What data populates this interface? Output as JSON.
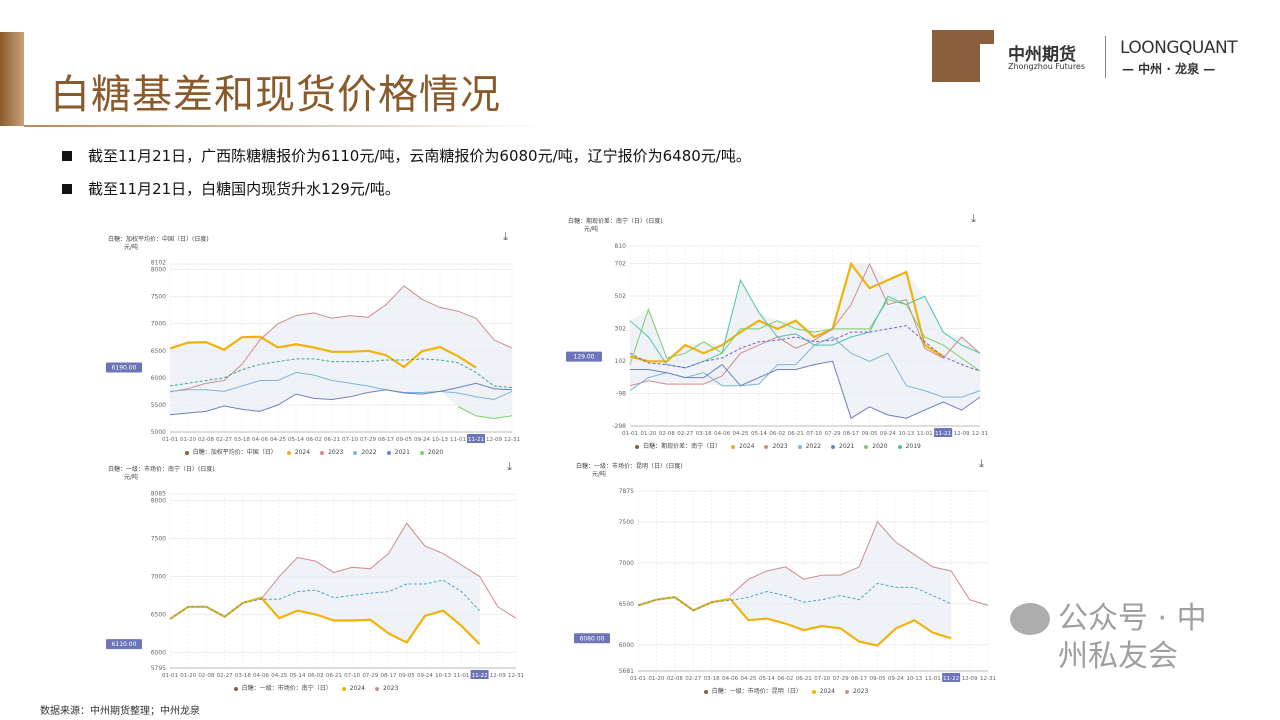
{
  "header": {
    "title": "白糖基差和现货价格情况",
    "brand_cn": "中州期货",
    "brand_en": "Zhongzhou Futures",
    "lq_prefix": "LOONGQ",
    "lq_suffix": "UANT",
    "lq_sub": "— 中州 · 龙泉 —"
  },
  "bullets": [
    "截至11月21日，广西陈糖糖报价为6110元/吨，云南糖报价为6080元/吨，辽宁报价为6480元/吨。",
    "截至11月21日，白糖国内现货升水129元/吨。"
  ],
  "source": "数据来源：中州期货整理；中州龙泉",
  "watermark": "公众号 · 中州私友会",
  "chart_data": [
    {
      "type": "line",
      "title": "白糖：加权平均价：中国（日）(日度)",
      "unit": "元/吨",
      "download_icon": "download-icon",
      "ylim": [
        5000,
        8102
      ],
      "yticks": [
        5000,
        5500,
        6000,
        6500,
        7000,
        7500,
        8000,
        8102
      ],
      "current_label": "6190.00",
      "current_value": 6190,
      "highlight_x": "11-21",
      "categories": [
        "01-01",
        "01-20",
        "02-08",
        "02-27",
        "03-18",
        "04-06",
        "04-25",
        "05-14",
        "06-02",
        "06-21",
        "07-10",
        "07-29",
        "08-17",
        "09-05",
        "09-24",
        "10-13",
        "11-01",
        "11-21",
        "12-09",
        "12-31"
      ],
      "legend_label": "白糖：加权平均价：中国（日）",
      "series": [
        {
          "name": "2024",
          "color": "#f2b20a",
          "width": 2.2,
          "values": [
            6540,
            6650,
            6660,
            6520,
            6750,
            6760,
            6560,
            6620,
            6560,
            6480,
            6480,
            6500,
            6420,
            6200,
            6490,
            6570,
            6400,
            6190,
            null,
            null
          ]
        },
        {
          "name": "2023",
          "color": "#d48a8a",
          "values": [
            5740,
            5800,
            5900,
            5950,
            6250,
            6700,
            7000,
            7150,
            7200,
            7100,
            7150,
            7120,
            7350,
            7700,
            7450,
            7300,
            7230,
            7100,
            6700,
            6550
          ]
        },
        {
          "name": "2022",
          "color": "#7cb8d6",
          "values": [
            5750,
            5780,
            5780,
            5750,
            5850,
            5950,
            5950,
            6100,
            6050,
            5950,
            5900,
            5850,
            5780,
            5730,
            5730,
            5750,
            5720,
            5650,
            5600,
            5750
          ]
        },
        {
          "name": "2021",
          "color": "#6f7fc8",
          "values": [
            5320,
            5350,
            5380,
            5480,
            5420,
            5380,
            5500,
            5700,
            5620,
            5600,
            5650,
            5730,
            5780,
            5720,
            5700,
            5750,
            5820,
            5900,
            5800,
            5780
          ]
        },
        {
          "name": "2020",
          "color": "#7ccf6a",
          "values": [
            null,
            null,
            null,
            null,
            null,
            null,
            null,
            null,
            null,
            null,
            null,
            null,
            null,
            null,
            null,
            null,
            5470,
            5300,
            5250,
            5300
          ]
        },
        {
          "name": "均值",
          "color": "#3aaa8a",
          "dashed": true,
          "legend": false,
          "values": [
            5850,
            5900,
            5950,
            6000,
            6150,
            6250,
            6300,
            6350,
            6350,
            6300,
            6300,
            6300,
            6330,
            6330,
            6350,
            6330,
            6280,
            6100,
            5850,
            5820
          ]
        }
      ]
    },
    {
      "type": "line",
      "title": "白糖：期现价差：南宁（日）(日度)",
      "unit": "元/吨",
      "download_icon": "download-icon",
      "ylim": [
        -298,
        810
      ],
      "yticks": [
        -298,
        -98,
        102,
        302,
        502,
        702,
        810
      ],
      "current_label": "129.00",
      "current_value": 129,
      "highlight_x": "11-21",
      "categories": [
        "01-01",
        "01-20",
        "02-08",
        "02-27",
        "03-18",
        "04-06",
        "04-25",
        "05-14",
        "06-02",
        "06-21",
        "07-10",
        "07-29",
        "08-17",
        "09-05",
        "09-24",
        "10-13",
        "11-01",
        "11-21",
        "12-09",
        "12-31"
      ],
      "legend_label": "白糖：期现价差：南宁（日）",
      "series": [
        {
          "name": "2024",
          "color": "#f2b20a",
          "width": 2.2,
          "values": [
            130,
            100,
            100,
            200,
            150,
            200,
            280,
            350,
            300,
            350,
            250,
            300,
            700,
            550,
            600,
            650,
            200,
            129,
            null,
            null
          ]
        },
        {
          "name": "2023",
          "color": "#d48a8a",
          "values": [
            -50,
            -20,
            -40,
            -40,
            -40,
            10,
            150,
            200,
            250,
            180,
            230,
            300,
            450,
            700,
            450,
            480,
            180,
            120,
            250,
            150
          ]
        },
        {
          "name": "2022",
          "color": "#7cb8d6",
          "values": [
            -80,
            0,
            30,
            0,
            30,
            -50,
            -50,
            -40,
            80,
            80,
            200,
            250,
            150,
            100,
            150,
            -50,
            -80,
            -120,
            -120,
            -80
          ]
        },
        {
          "name": "2021",
          "color": "#6f7fc8",
          "values": [
            50,
            50,
            30,
            0,
            0,
            80,
            -50,
            0,
            50,
            50,
            80,
            100,
            -250,
            -180,
            -230,
            -250,
            -200,
            -150,
            -200,
            -120
          ]
        },
        {
          "name": "2020",
          "color": "#7ccf6a",
          "values": [
            80,
            420,
            120,
            150,
            220,
            150,
            300,
            300,
            350,
            300,
            280,
            300,
            300,
            300,
            480,
            450,
            250,
            200,
            120,
            40
          ]
        },
        {
          "name": "2019",
          "color": "#4fc4a6",
          "values": [
            350,
            250,
            80,
            60,
            100,
            150,
            600,
            400,
            250,
            270,
            200,
            200,
            250,
            280,
            500,
            450,
            500,
            280,
            200,
            150
          ]
        },
        {
          "name": "均值",
          "color": "#7a5fd0",
          "dashed": true,
          "legend": false,
          "values": [
            150,
            90,
            80,
            60,
            100,
            120,
            180,
            220,
            230,
            250,
            220,
            230,
            280,
            280,
            300,
            320,
            220,
            130,
            80,
            40
          ]
        }
      ]
    },
    {
      "type": "line",
      "title": "白糖：一级：市场价：南宁（日）(日度)",
      "unit": "元/吨",
      "download_icon": "download-icon",
      "ylim": [
        5795,
        8085
      ],
      "yticks": [
        5795,
        6000,
        6500,
        7000,
        7500,
        8000,
        8085
      ],
      "current_label": "6110.00",
      "current_value": 6110,
      "highlight_x": "11-22",
      "categories": [
        "01-01",
        "01-20",
        "02-08",
        "02-27",
        "03-18",
        "04-06",
        "04-25",
        "05-14",
        "06-02",
        "06-21",
        "07-10",
        "07-29",
        "08-17",
        "09-05",
        "09-24",
        "10-13",
        "11-01",
        "11-22",
        "12-09",
        "12-31"
      ],
      "legend_label": "白糖：一级：市场价：南宁（日）",
      "series": [
        {
          "name": "2024",
          "color": "#f2b20a",
          "width": 2.2,
          "values": [
            6440,
            6600,
            6600,
            6470,
            6650,
            6720,
            6450,
            6550,
            6500,
            6420,
            6420,
            6430,
            6250,
            6130,
            6480,
            6550,
            6350,
            6110,
            null,
            null
          ]
        },
        {
          "name": "2023",
          "color": "#d48a8a",
          "values": [
            null,
            null,
            null,
            null,
            null,
            6700,
            7000,
            7250,
            7200,
            7050,
            7120,
            7100,
            7300,
            7700,
            7400,
            7300,
            7150,
            7000,
            6600,
            6450
          ]
        },
        {
          "name": "均值",
          "color": "#4ea6c8",
          "dashed": true,
          "legend": false,
          "values": [
            6440,
            6600,
            6600,
            6470,
            6650,
            6700,
            6700,
            6800,
            6820,
            6720,
            6750,
            6780,
            6800,
            6900,
            6900,
            6950,
            6800,
            6550,
            null,
            null
          ]
        }
      ]
    },
    {
      "type": "line",
      "title": "白糖：一级：市场价：昆明（日）(日度)",
      "unit": "元/吨",
      "download_icon": "download-icon",
      "ylim": [
        5681,
        7875
      ],
      "yticks": [
        5681,
        6000,
        6500,
        7000,
        7500,
        7875
      ],
      "current_label": "6080.00",
      "current_value": 6080,
      "highlight_x": "11-22",
      "categories": [
        "01-01",
        "01-20",
        "02-08",
        "02-27",
        "03-18",
        "04-06",
        "04-25",
        "05-14",
        "06-02",
        "06-21",
        "07-10",
        "07-29",
        "08-17",
        "09-05",
        "09-24",
        "10-13",
        "11-01",
        "11-22",
        "12-09",
        "12-31"
      ],
      "legend_label": "白糖：一级：市场价：昆明（日）",
      "series": [
        {
          "name": "2024",
          "color": "#f2b20a",
          "width": 2.2,
          "values": [
            6480,
            6550,
            6580,
            6420,
            6520,
            6560,
            6300,
            6320,
            6260,
            6180,
            6230,
            6200,
            6040,
            5990,
            6200,
            6300,
            6150,
            6080,
            null,
            null
          ]
        },
        {
          "name": "2023",
          "color": "#d48a8a",
          "values": [
            null,
            null,
            null,
            null,
            null,
            6600,
            6800,
            6900,
            6950,
            6800,
            6850,
            6850,
            6950,
            7500,
            7250,
            7100,
            6950,
            6900,
            6550,
            6480
          ]
        },
        {
          "name": "均值",
          "color": "#4ea6c8",
          "dashed": true,
          "legend": false,
          "values": [
            6480,
            6550,
            6580,
            6420,
            6520,
            6540,
            6580,
            6650,
            6600,
            6520,
            6550,
            6600,
            6550,
            6750,
            6700,
            6700,
            6600,
            6500,
            null,
            null
          ]
        }
      ]
    }
  ]
}
